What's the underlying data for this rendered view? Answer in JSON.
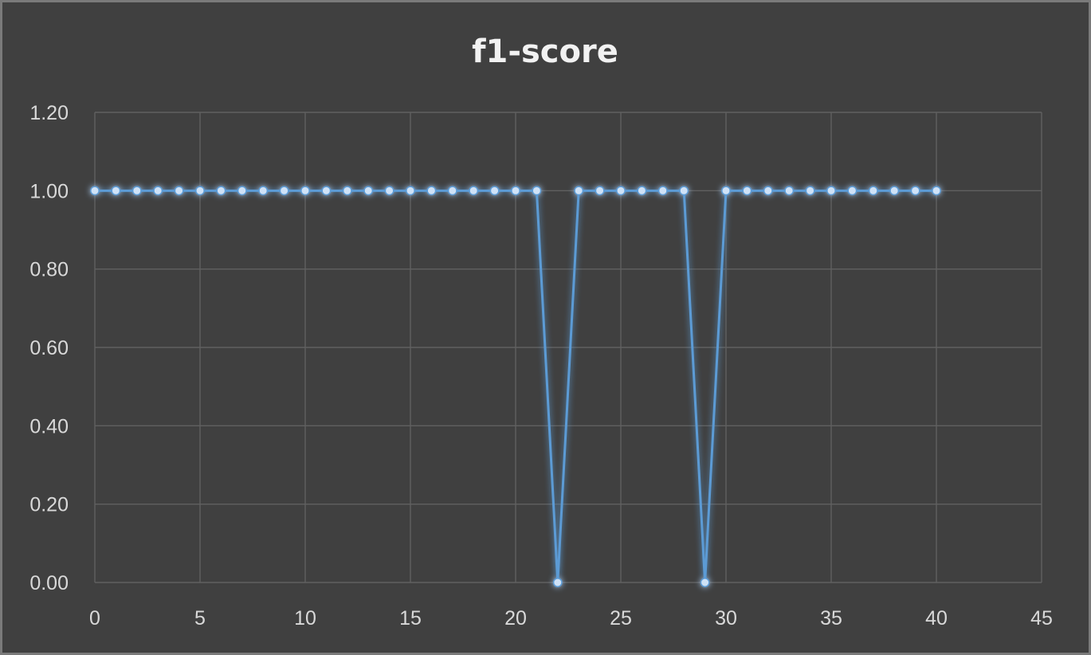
{
  "chart_data": {
    "type": "line",
    "title": "f1-score",
    "xlabel": "",
    "ylabel": "",
    "xlim": [
      0,
      45
    ],
    "ylim": [
      0,
      1.2
    ],
    "x_ticks": [
      "0",
      "5",
      "10",
      "15",
      "20",
      "25",
      "30",
      "35",
      "40",
      "45"
    ],
    "y_ticks": [
      "0.00",
      "0.20",
      "0.40",
      "0.60",
      "0.80",
      "1.00",
      "1.20"
    ],
    "grid": true,
    "legend": "none",
    "series": [
      {
        "color": "#5b9bd5",
        "marker": "circle",
        "points": [
          [
            0,
            1.0
          ],
          [
            1,
            1.0
          ],
          [
            2,
            1.0
          ],
          [
            3,
            1.0
          ],
          [
            4,
            1.0
          ],
          [
            5,
            1.0
          ],
          [
            6,
            1.0
          ],
          [
            7,
            1.0
          ],
          [
            8,
            1.0
          ],
          [
            9,
            1.0
          ],
          [
            10,
            1.0
          ],
          [
            11,
            1.0
          ],
          [
            12,
            1.0
          ],
          [
            13,
            1.0
          ],
          [
            14,
            1.0
          ],
          [
            15,
            1.0
          ],
          [
            16,
            1.0
          ],
          [
            17,
            1.0
          ],
          [
            18,
            1.0
          ],
          [
            19,
            1.0
          ],
          [
            20,
            1.0
          ],
          [
            21,
            1.0
          ],
          [
            22,
            0.0
          ],
          [
            23,
            1.0
          ],
          [
            24,
            1.0
          ],
          [
            25,
            1.0
          ],
          [
            26,
            1.0
          ],
          [
            27,
            1.0
          ],
          [
            28,
            1.0
          ],
          [
            29,
            0.0
          ],
          [
            30,
            1.0
          ],
          [
            31,
            1.0
          ],
          [
            32,
            1.0
          ],
          [
            33,
            1.0
          ],
          [
            34,
            1.0
          ],
          [
            35,
            1.0
          ],
          [
            36,
            1.0
          ],
          [
            37,
            1.0
          ],
          [
            38,
            1.0
          ],
          [
            39,
            1.0
          ],
          [
            40,
            1.0
          ]
        ]
      }
    ]
  }
}
